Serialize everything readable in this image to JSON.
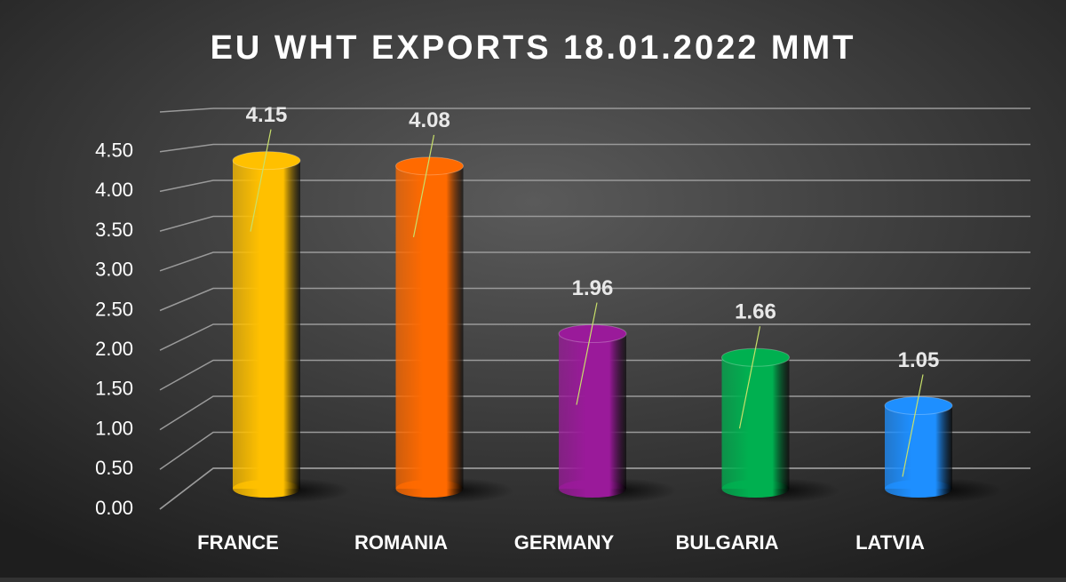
{
  "chart_data": {
    "type": "bar",
    "title": "EU WHT EXPORTS 18.01.2022 MMT",
    "categories": [
      "FRANCE",
      "ROMANIA",
      "GERMANY",
      "BULGARIA",
      "LATVIA"
    ],
    "values": [
      4.15,
      4.08,
      1.96,
      1.66,
      1.05
    ],
    "colors": [
      "#ffc000",
      "#ff6a00",
      "#9a1a9a",
      "#00b050",
      "#1e8fff"
    ],
    "ylim": [
      0,
      5
    ],
    "yticks": [
      {
        "value": 0,
        "label": "0.00"
      },
      {
        "value": 0.5,
        "label": "0.50"
      },
      {
        "value": 1,
        "label": "1.00"
      },
      {
        "value": 1.5,
        "label": "1.50"
      },
      {
        "value": 2,
        "label": "2.00"
      },
      {
        "value": 2.5,
        "label": "2.50"
      },
      {
        "value": 3,
        "label": "3.00"
      },
      {
        "value": 3.5,
        "label": "3.50"
      },
      {
        "value": 4,
        "label": "4.00"
      },
      {
        "value": 4.5,
        "label": "4.50"
      }
    ],
    "grid": true
  }
}
